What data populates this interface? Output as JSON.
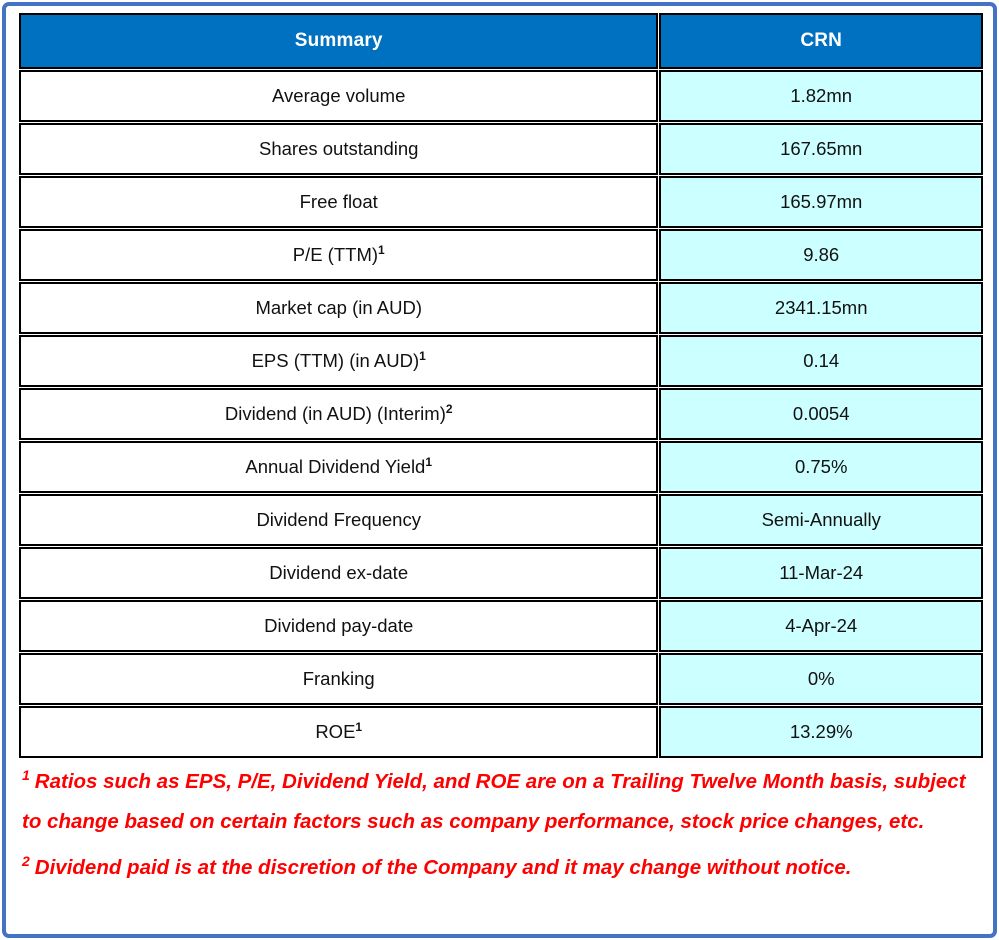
{
  "table": {
    "header": {
      "label": "Summary",
      "value": "CRN"
    },
    "rows": [
      {
        "label": "Average volume",
        "sup": "",
        "value": "1.82mn"
      },
      {
        "label": "Shares outstanding",
        "sup": "",
        "value": "167.65mn"
      },
      {
        "label": "Free float",
        "sup": "",
        "value": "165.97mn"
      },
      {
        "label": "P/E (TTM)",
        "sup": "1",
        "value": "9.86"
      },
      {
        "label": "Market cap (in AUD)",
        "sup": "",
        "value": "2341.15mn"
      },
      {
        "label": "EPS (TTM) (in AUD)",
        "sup": "1",
        "value": "0.14"
      },
      {
        "label": "Dividend (in AUD) (Interim)",
        "sup": "2",
        "value": "0.0054"
      },
      {
        "label": "Annual Dividend Yield",
        "sup": "1",
        "value": "0.75%"
      },
      {
        "label": "Dividend Frequency",
        "sup": "",
        "value": "Semi-Annually"
      },
      {
        "label": "Dividend ex-date",
        "sup": "",
        "value": "11-Mar-24"
      },
      {
        "label": "Dividend pay-date",
        "sup": "",
        "value": "4-Apr-24"
      },
      {
        "label": "Franking",
        "sup": "",
        "value": "0%"
      },
      {
        "label": "ROE",
        "sup": "1",
        "value": "13.29%"
      }
    ]
  },
  "footnotes": [
    {
      "sup": "1",
      "text": "Ratios such as EPS, P/E, Dividend Yield, and ROE are on a Trailing Twelve Month basis, subject to change based on certain factors such as company performance, stock price changes, etc."
    },
    {
      "sup": "2",
      "text": "Dividend paid is at the discretion of the Company and it may change without notice."
    }
  ],
  "colors": {
    "frame_blue": "#4472C4",
    "header_blue": "#0070C0",
    "value_cyan": "#CCFFFF",
    "footnote_red": "#FF0000"
  }
}
